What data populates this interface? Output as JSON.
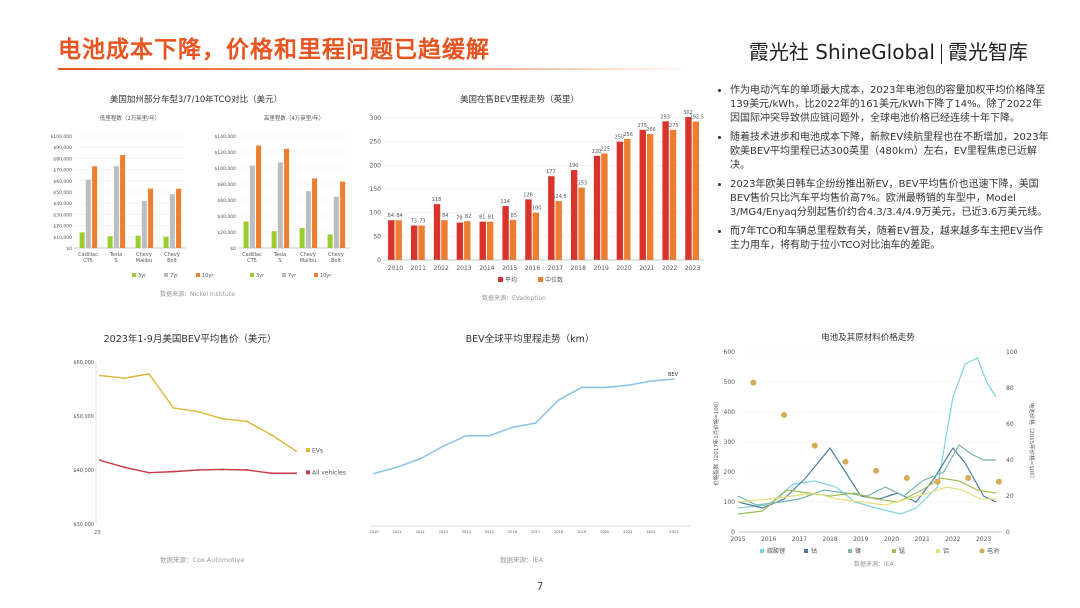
{
  "page": {
    "title": "电池成本下降，价格和里程问题已趋缓解",
    "brand_left": "霞光社 ShineGlobal",
    "brand_right": "霞光智库",
    "page_number": "7",
    "accent_color": "#e8531f"
  },
  "bullets": [
    "作为电动汽车的单项最大成本，2023年电池包的容量加权平均价格降至139美元/kWh，比2022年的161美元/kWh下降了14%。除了2022年因国际冲突导致供应链问题外，全球电池价格已经连续十年下降。",
    "随着技术进步和电池成本下降，新款EV续航里程也在不断增加，2023年欧美BEV平均里程已达300英里（480km）左右，EV里程焦虑已近解决。",
    "2023年欧美日韩车企纷纷推出新EV，BEV平均售价也迅速下降，美国BEV售价只比汽车平均售价高7%。欧洲最畅销的车型中，Model 3/MG4/Enyaq分别起售价约合4.3/3.4/4.9万美元，已近3.6万美元线。",
    "而7年TCO和车辆总里程数有关，随着EV普及，越来越多车主把EV当作主力用车，将有助于拉小TCO对比油车的差距。"
  ],
  "chart_data": [
    {
      "id": "tco",
      "type": "bar",
      "title": "美国加州部分车型3/7/10年TCO对比（美元）",
      "source": "数据来源：Nickel Institute",
      "categories": [
        "Cadillac CT5",
        "Tesla S",
        "Chevy Malibu",
        "Chevy Bolt"
      ],
      "legend": [
        "3yr",
        "7yr",
        "10yr"
      ],
      "colors": [
        "#9acd32",
        "#bdbdbd",
        "#ed7d31"
      ],
      "panels": [
        {
          "subtitle": "低里程数（2万英里/年）",
          "ylim": [
            0,
            100000
          ],
          "ticks": [
            "$0",
            "$10,000",
            "$20,000",
            "$30,000",
            "$40,000",
            "$50,000",
            "$60,000",
            "$70,000",
            "$80,000",
            "$90,000",
            "$100,000"
          ],
          "series": [
            {
              "name": "3yr",
              "values": [
                14000,
                10500,
                11000,
                10000
              ]
            },
            {
              "name": "7yr",
              "values": [
                61000,
                73000,
                42000,
                48000
              ]
            },
            {
              "name": "10yr",
              "values": [
                73000,
                83000,
                53000,
                53000
              ]
            }
          ]
        },
        {
          "subtitle": "高里程数（4万英里/年）",
          "ylim": [
            0,
            140000
          ],
          "ticks": [
            "$0",
            "$20,000",
            "$40,000",
            "$60,000",
            "$80,000",
            "$100,000",
            "$120,000",
            "$140,000"
          ],
          "series": [
            {
              "name": "3yr",
              "values": [
                33000,
                21000,
                25000,
                17000
              ]
            },
            {
              "name": "7yr",
              "values": [
                103000,
                107000,
                71000,
                64000
              ]
            },
            {
              "name": "10yr",
              "values": [
                128000,
                124000,
                87000,
                83000
              ]
            }
          ]
        }
      ]
    },
    {
      "id": "bev_range",
      "type": "bar",
      "title": "美国在售BEV里程走势（英里）",
      "source": "数据来源：EVadoption",
      "categories": [
        "2010",
        "2011",
        "2012",
        "2013",
        "2014",
        "2015",
        "2016",
        "2017",
        "2018",
        "2019",
        "2020",
        "2021",
        "2022",
        "2023"
      ],
      "ylim": [
        0,
        300
      ],
      "ticks": [
        0,
        50,
        100,
        150,
        200,
        250,
        300
      ],
      "colors": [
        "#d9342b",
        "#ed7d31"
      ],
      "series": [
        {
          "name": "平均",
          "values": [
            84,
            73,
            118,
            79,
            81,
            114,
            128,
            177,
            190,
            220,
            250,
            275,
            293,
            302
          ]
        },
        {
          "name": "中位数",
          "values": [
            84,
            73,
            84,
            82,
            81,
            85,
            100,
            124.5,
            153,
            225,
            256,
            266,
            275,
            292.5
          ]
        }
      ],
      "value_labels_avg": [
        "84",
        "73",
        "118",
        "79",
        "81",
        "114",
        "128",
        "177",
        "190",
        "220",
        "250",
        "275",
        "293",
        "302"
      ],
      "value_labels_med": [
        "84",
        "73",
        "84",
        "82",
        "81",
        "85",
        "100",
        "124.5",
        "153",
        "225",
        "256",
        "266",
        "275",
        "292.5"
      ]
    },
    {
      "id": "us_price",
      "type": "line",
      "title": "2023年1-9月美国BEV平均售价（美元）",
      "source": "数据来源：Cox Automotive",
      "x": [
        "23",
        "",
        "",
        "",
        "",
        "",
        "",
        "",
        ""
      ],
      "ylim": [
        30000,
        60000
      ],
      "ticks": [
        "$30,000",
        "$40,000",
        "$50,000",
        "$60,000"
      ],
      "series": [
        {
          "name": "EVs",
          "color": "#e0b53a",
          "values": [
            57500,
            57000,
            57800,
            51500,
            50800,
            49500,
            49000,
            46500,
            43500
          ]
        },
        {
          "name": "All vehicles",
          "color": "#c83c4a",
          "values": [
            41800,
            40500,
            39500,
            39700,
            40000,
            40100,
            40000,
            39400,
            39400
          ]
        }
      ]
    },
    {
      "id": "bev_global",
      "type": "line",
      "title": "BEV全球平均里程走势（km）",
      "source": "数据来源：IEA",
      "x": [
        "2010",
        "2011",
        "2012",
        "2013",
        "2014",
        "2015",
        "2016",
        "2017",
        "2018",
        "2019",
        "2020",
        "2021",
        "2022",
        "2023"
      ],
      "ylim": [
        0,
        400
      ],
      "series": [
        {
          "name": "BEV",
          "color": "#8ec5e6",
          "values": [
            125,
            140,
            160,
            190,
            215,
            215,
            235,
            245,
            300,
            330,
            330,
            335,
            345,
            350
          ]
        }
      ],
      "end_label": "BEV"
    },
    {
      "id": "battery_materials",
      "type": "line",
      "title": "电池及其原材料价格走势",
      "source": "数据来源：IEA",
      "x_ticks": [
        "2015",
        "2016",
        "2017",
        "2018",
        "2019",
        "2020",
        "2021",
        "2022",
        "2023"
      ],
      "xlim": [
        2015,
        2023.6
      ],
      "left_ylim": [
        0,
        600
      ],
      "left_ticks": [
        0,
        100,
        200,
        300,
        400,
        500,
        600
      ],
      "right_ylim": [
        0,
        100
      ],
      "right_ticks": [
        0,
        20,
        40,
        60,
        80,
        100
      ],
      "left_axis_label": "价格指数（2017年1月价格=100）",
      "right_axis_label": "电池价格（2015年价格=100）",
      "series": [
        {
          "name": "碳酸锂",
          "color": "#7fd3e0",
          "points": [
            [
              2015,
              80
            ],
            [
              2016,
              90
            ],
            [
              2016.8,
              160
            ],
            [
              2017.5,
              170
            ],
            [
              2018.2,
              150
            ],
            [
              2018.8,
              100
            ],
            [
              2019.5,
              80
            ],
            [
              2020.3,
              60
            ],
            [
              2020.8,
              80
            ],
            [
              2021.5,
              150
            ],
            [
              2022,
              450
            ],
            [
              2022.4,
              560
            ],
            [
              2022.8,
              580
            ],
            [
              2023.1,
              500
            ],
            [
              2023.4,
              450
            ]
          ]
        },
        {
          "name": "钴",
          "color": "#4a7fa5",
          "points": [
            [
              2015,
              100
            ],
            [
              2015.8,
              80
            ],
            [
              2016.5,
              110
            ],
            [
              2017.2,
              180
            ],
            [
              2018,
              280
            ],
            [
              2018.5,
              200
            ],
            [
              2019,
              120
            ],
            [
              2019.6,
              110
            ],
            [
              2020.2,
              130
            ],
            [
              2020.8,
              100
            ],
            [
              2021.4,
              180
            ],
            [
              2022,
              280
            ],
            [
              2022.4,
              230
            ],
            [
              2023,
              120
            ],
            [
              2023.4,
              100
            ]
          ]
        },
        {
          "name": "镍",
          "color": "#78b8a6",
          "points": [
            [
              2015,
              120
            ],
            [
              2015.6,
              90
            ],
            [
              2016.4,
              100
            ],
            [
              2017,
              110
            ],
            [
              2017.8,
              140
            ],
            [
              2018.5,
              130
            ],
            [
              2019.2,
              120
            ],
            [
              2019.8,
              150
            ],
            [
              2020.4,
              120
            ],
            [
              2021,
              170
            ],
            [
              2021.7,
              200
            ],
            [
              2022.2,
              290
            ],
            [
              2022.6,
              260
            ],
            [
              2023,
              240
            ],
            [
              2023.4,
              240
            ]
          ]
        },
        {
          "name": "锰",
          "color": "#9fbf5a",
          "points": [
            [
              2015,
              60
            ],
            [
              2015.8,
              70
            ],
            [
              2016.6,
              140
            ],
            [
              2017.3,
              130
            ],
            [
              2018,
              120
            ],
            [
              2018.8,
              130
            ],
            [
              2019.5,
              110
            ],
            [
              2020.2,
              100
            ],
            [
              2021,
              140
            ],
            [
              2021.6,
              180
            ],
            [
              2022.2,
              170
            ],
            [
              2022.8,
              140
            ],
            [
              2023.4,
              130
            ]
          ]
        },
        {
          "name": "铝",
          "color": "#e6e07a",
          "points": [
            [
              2015,
              100
            ],
            [
              2016,
              110
            ],
            [
              2016.8,
              120
            ],
            [
              2017.5,
              130
            ],
            [
              2018.2,
              110
            ],
            [
              2019,
              100
            ],
            [
              2019.8,
              90
            ],
            [
              2020.5,
              110
            ],
            [
              2021.2,
              130
            ],
            [
              2021.8,
              150
            ],
            [
              2022.3,
              140
            ],
            [
              2022.9,
              110
            ],
            [
              2023.4,
              110
            ]
          ]
        },
        {
          "name": "电池",
          "color": "#d4ab57",
          "type": "scatter",
          "axis": "right",
          "points": [
            [
              2015.5,
              83
            ],
            [
              2016.5,
              65
            ],
            [
              2017.5,
              48
            ],
            [
              2018.5,
              39
            ],
            [
              2019.5,
              34
            ],
            [
              2020.5,
              30
            ],
            [
              2021.5,
              28
            ],
            [
              2022.5,
              30
            ],
            [
              2023.5,
              28
            ]
          ]
        }
      ]
    }
  ]
}
